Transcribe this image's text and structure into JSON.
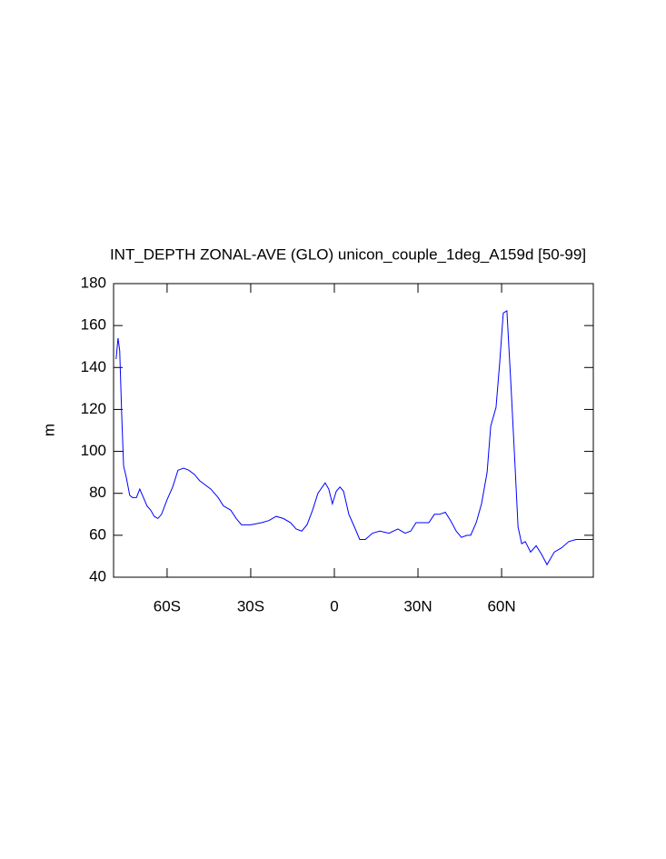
{
  "chart_data": {
    "type": "line",
    "title": "INT_DEPTH ZONAL-AVE (GLO) unicon_couple_1deg_A159d [50-99]",
    "y_label": "m",
    "x": [
      -78.3,
      -77.6,
      -77,
      -76.3,
      -75.6,
      -74.7,
      -73.4,
      -72.4,
      -71,
      -69.8,
      -68.5,
      -67.2,
      -65.9,
      -64.6,
      -63.3,
      -62,
      -60,
      -58,
      -56.1,
      -54.1,
      -52.2,
      -50.2,
      -48.3,
      -46.3,
      -44.3,
      -41.7,
      -39.8,
      -37.2,
      -35.2,
      -33.3,
      -30,
      -26.1,
      -23.5,
      -20.9,
      -18.3,
      -15.7,
      -13.7,
      -11.7,
      -9.8,
      -7.8,
      -5.9,
      -3.3,
      -2,
      -0.7,
      0.7,
      2,
      3.3,
      5.2,
      7.2,
      9.1,
      11.1,
      13.7,
      16.3,
      19.6,
      22.8,
      25.4,
      27.4,
      29.3,
      31.9,
      33.9,
      35.9,
      37.8,
      39.8,
      41.7,
      43.7,
      45.6,
      47.6,
      48.9,
      50.9,
      52.8,
      54.8,
      56.1,
      58,
      59.3,
      60.6,
      61.9,
      63.3,
      64.6,
      65.9,
      67.2,
      68.5,
      70.4,
      72.4,
      74.3,
      76.3,
      78.9,
      81.5,
      84.1,
      86.7,
      89.3,
      92.9
    ],
    "series": [
      {
        "color": "#0000ff",
        "values": [
          144,
          154,
          148,
          118,
          93,
          88,
          79,
          78,
          78,
          82,
          78,
          74,
          72,
          69,
          68,
          70,
          77,
          83,
          91,
          92,
          91,
          89,
          86,
          84,
          82,
          78,
          74,
          72,
          68,
          65,
          65,
          66,
          67,
          69,
          68,
          66,
          63,
          62,
          65,
          72,
          80,
          85,
          82,
          75,
          81,
          83,
          81,
          70,
          64,
          58,
          58,
          61,
          62,
          61,
          63,
          61,
          62,
          66,
          66,
          66,
          70,
          70,
          71,
          67,
          62,
          59,
          60,
          60,
          66,
          75,
          90,
          112,
          121,
          142,
          166,
          167,
          133,
          99,
          64,
          56,
          57,
          52,
          55,
          51,
          46,
          52,
          54,
          57,
          58,
          58,
          58
        ]
      }
    ],
    "xlim": [
      -79.2,
      92.9
    ],
    "xticks": [
      {
        "value": -60,
        "label": "60S"
      },
      {
        "value": -30,
        "label": "30S"
      },
      0,
      {
        "value": 30,
        "label": "30N"
      },
      {
        "value": 60,
        "label": "60N"
      }
    ],
    "ylim": [
      40,
      180
    ],
    "yticks": [
      40,
      60,
      80,
      100,
      120,
      140,
      160,
      180
    ]
  }
}
